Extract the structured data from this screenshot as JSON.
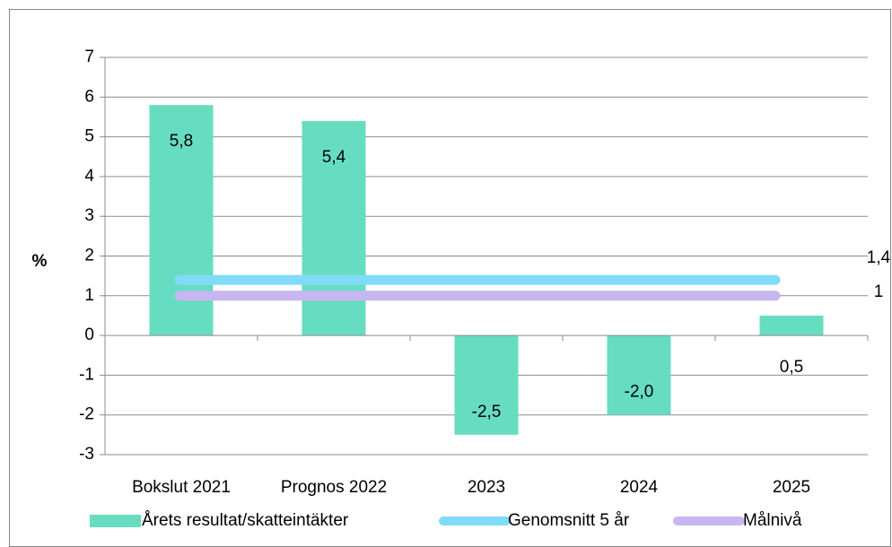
{
  "chart_data": {
    "type": "bar",
    "categories": [
      "Bokslut 2021",
      "Prognos 2022",
      "2023",
      "2024",
      "2025"
    ],
    "series": [
      {
        "name": "Årets resultat/skatteintäkter",
        "kind": "bar",
        "color": "#66DDC0",
        "values": [
          5.8,
          5.4,
          -2.5,
          -2.0,
          0.5
        ],
        "labels": [
          "5,8",
          "5,4",
          "-2,5",
          "-2,0",
          "0,5"
        ]
      },
      {
        "name": "Genomsnitt 5 år",
        "kind": "line",
        "color": "#7FDBF7",
        "value": 1.4,
        "label": "1,4"
      },
      {
        "name": "Målnivå",
        "kind": "line",
        "color": "#C8B6F0",
        "value": 1,
        "label": "1"
      }
    ],
    "ylabel": "%",
    "xlabel": "",
    "ylim": [
      -3,
      7
    ],
    "yticks": [
      "-3",
      "-2",
      "-1",
      "0",
      "1",
      "2",
      "3",
      "4",
      "5",
      "6",
      "7"
    ],
    "grid": true,
    "legend": "bottom"
  }
}
